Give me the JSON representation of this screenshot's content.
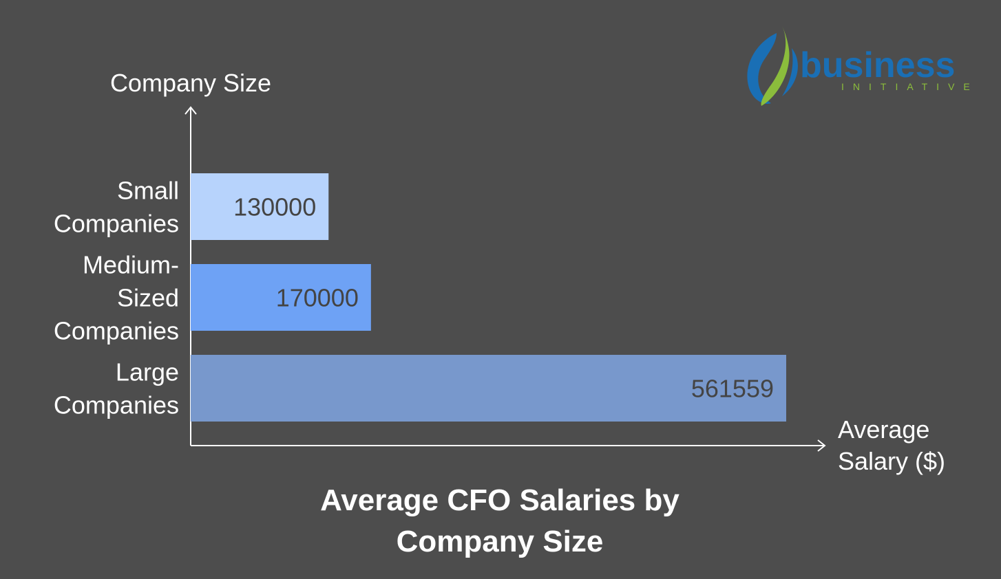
{
  "chart_data": {
    "type": "bar",
    "orientation": "horizontal",
    "title": "Average CFO Salaries by Company Size",
    "title_lines": [
      "Average CFO Salaries by",
      "Company Size"
    ],
    "ylabel": "Company Size",
    "xlabel": "Average Salary ($)",
    "xlabel_lines": [
      "Average",
      "Salary ($)"
    ],
    "categories": [
      "Small Companies",
      "Medium-Sized Companies",
      "Large Companies"
    ],
    "category_lines": [
      [
        "Small",
        "Companies"
      ],
      [
        "Medium-",
        "Sized",
        "Companies"
      ],
      [
        "Large",
        "Companies"
      ]
    ],
    "values": [
      130000,
      170000,
      561559
    ],
    "data_labels": [
      "130000",
      "170000",
      "561559"
    ],
    "bar_colors": [
      "#b7d3fc",
      "#6ea2f5",
      "#7898cc"
    ],
    "xlim": [
      0,
      590000
    ],
    "grid": false,
    "legend": "none"
  },
  "logo": {
    "word": "business",
    "tagline": "INITIATIVE",
    "colors": {
      "word": "#1a6fb5",
      "tagline": "#8bbd3c"
    }
  },
  "colors": {
    "background": "#4d4d4d",
    "text": "#ffffff",
    "axis": "#ffffff",
    "data_label": "#444444"
  }
}
